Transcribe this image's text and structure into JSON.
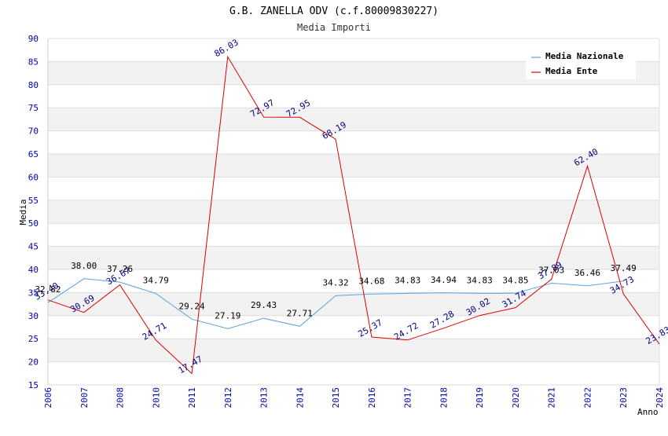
{
  "chart_data": {
    "type": "line",
    "title": "G.B. ZANELLA ODV (c.f.80009830227)",
    "subtitle": "Media Importi",
    "xlabel": "Anno",
    "ylabel": "Media",
    "ylim": [
      15,
      90
    ],
    "yticks": [
      15,
      20,
      25,
      30,
      35,
      40,
      45,
      50,
      55,
      60,
      65,
      70,
      75,
      80,
      85,
      90
    ],
    "categories": [
      "2006",
      "2007",
      "2008",
      "2010",
      "2011",
      "2012",
      "2013",
      "2014",
      "2015",
      "2016",
      "2017",
      "2018",
      "2019",
      "2020",
      "2021",
      "2022",
      "2023",
      "2024"
    ],
    "grid": "horizontal bands",
    "legend_position": "top-right",
    "series": [
      {
        "name": "Media Nazionale",
        "color": "#5ba3e0",
        "values": [
          32.82,
          38.0,
          37.26,
          34.79,
          29.24,
          27.19,
          29.43,
          27.71,
          34.32,
          34.68,
          34.83,
          34.94,
          34.83,
          34.85,
          37.03,
          36.46,
          37.49,
          null
        ],
        "labels": [
          "32.82",
          "38.00",
          "37.26",
          "34.79",
          "29.24",
          "27.19",
          "29.43",
          "27.71",
          "34.32",
          "34.68",
          "34.83",
          "34.94",
          "34.83",
          "34.85",
          "37.03",
          "36.46",
          "37.49",
          ""
        ]
      },
      {
        "name": "Media Ente",
        "color": "#dd0000",
        "values": [
          33.4,
          30.69,
          36.67,
          24.71,
          17.47,
          86.03,
          72.97,
          72.95,
          68.19,
          25.37,
          24.72,
          27.28,
          30.02,
          31.74,
          37.89,
          62.4,
          34.73,
          23.83
        ],
        "labels": [
          "33.40",
          "30.69",
          "36.67",
          "24.71",
          "17.47",
          "86.03",
          "72.97",
          "72.95",
          "68.19",
          "25.37",
          "24.72",
          "27.28",
          "30.02",
          "31.74",
          "37.89",
          "62.40",
          "34.73",
          "23.83"
        ]
      }
    ]
  }
}
